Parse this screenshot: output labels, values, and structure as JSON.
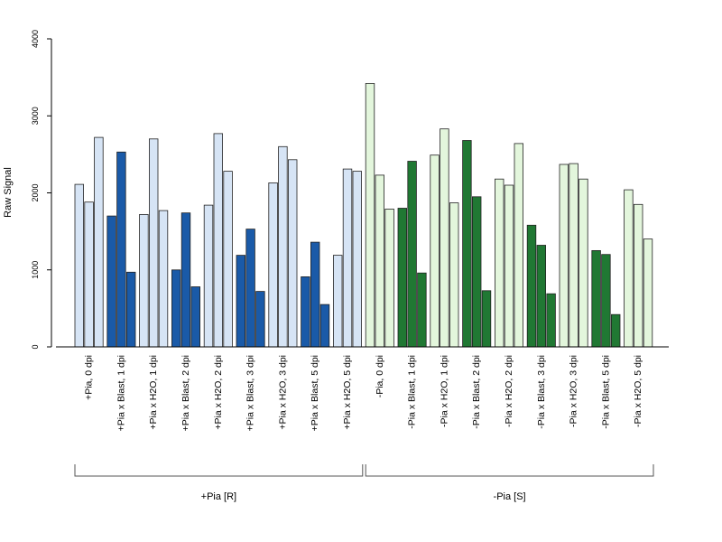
{
  "chart_data": {
    "type": "bar",
    "title": "",
    "xlabel": "",
    "ylabel": "Raw Signal",
    "ylim": [
      0,
      4000
    ],
    "yticks": [
      0,
      1000,
      2000,
      3000,
      4000
    ],
    "grid": false,
    "legend": "none",
    "colors": {
      "pia_plus_light": "#d6e4f5",
      "pia_plus_dark": "#1a5aa8",
      "pia_minus_light": "#e3f6dc",
      "pia_minus_dark": "#207833"
    },
    "categories": [
      "+Pia, 0 dpi",
      "+Pia x Blast, 1 dpi",
      "+Pia x H2O, 1 dpi",
      "+Pia x Blast, 2 dpi",
      "+Pia x H2O, 2 dpi",
      "+Pia x Blast, 3 dpi",
      "+Pia x H2O, 3 dpi",
      "+Pia x Blast, 5 dpi",
      "+Pia x H2O, 5 dpi",
      "-Pia, 0 dpi",
      "-Pia x Blast, 1 dpi",
      "-Pia x H2O, 1 dpi",
      "-Pia x Blast, 2 dpi",
      "-Pia x H2O, 2 dpi",
      "-Pia x Blast, 3 dpi",
      "-Pia x H2O, 3 dpi",
      "-Pia x Blast, 5 dpi",
      "-Pia x H2O, 5 dpi"
    ],
    "replicates": [
      [
        2110,
        1880,
        2720
      ],
      [
        1700,
        2530,
        970
      ],
      [
        1720,
        2700,
        1770
      ],
      [
        1000,
        1740,
        780
      ],
      [
        1840,
        2770,
        2280
      ],
      [
        1190,
        1530,
        720
      ],
      [
        2130,
        2600,
        2430
      ],
      [
        910,
        1360,
        550
      ],
      [
        1190,
        2310,
        2280
      ],
      [
        3420,
        2230,
        1790
      ],
      [
        1800,
        2410,
        960
      ],
      [
        2490,
        2830,
        1870
      ],
      [
        2680,
        1950,
        730
      ],
      [
        2180,
        2100,
        2640
      ],
      [
        1580,
        1320,
        690
      ],
      [
        2370,
        2380,
        2180
      ],
      [
        1250,
        1200,
        420
      ],
      [
        2040,
        1850,
        1400
      ]
    ],
    "bar_color_keys": [
      "pia_plus_light",
      "pia_plus_dark",
      "pia_plus_light",
      "pia_plus_dark",
      "pia_plus_light",
      "pia_plus_dark",
      "pia_plus_light",
      "pia_plus_dark",
      "pia_plus_light",
      "pia_minus_light",
      "pia_minus_dark",
      "pia_minus_light",
      "pia_minus_dark",
      "pia_minus_light",
      "pia_minus_dark",
      "pia_minus_light",
      "pia_minus_dark",
      "pia_minus_light"
    ],
    "groups": [
      {
        "label": "+Pia [R]",
        "from": 0,
        "to": 8
      },
      {
        "label": "-Pia [S]",
        "from": 9,
        "to": 17
      }
    ]
  }
}
